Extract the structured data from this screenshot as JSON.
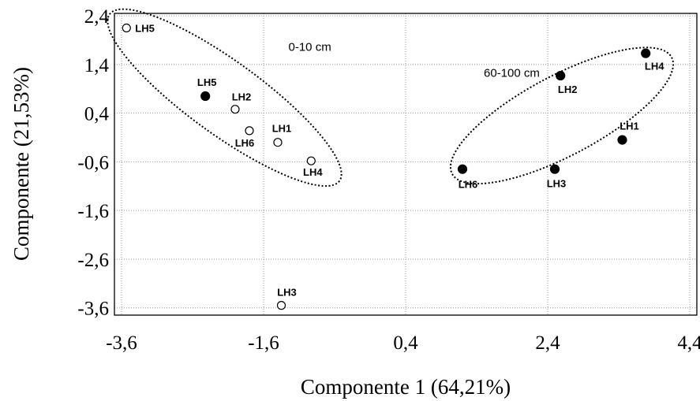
{
  "chart_data": {
    "type": "scatter",
    "xlabel": "Componente 1 (64,21%)",
    "ylabel": "Componente  (21,53%)",
    "xlim": [
      -3.7,
      4.5
    ],
    "ylim": [
      -3.75,
      2.45
    ],
    "xticks": [
      -3.6,
      -1.6,
      0.4,
      2.4,
      4.4
    ],
    "xtick_labels": [
      "-3,6",
      "-1,6",
      "0,4",
      "2,4",
      "4,4"
    ],
    "yticks": [
      2.4,
      1.4,
      0.4,
      -0.6,
      -1.6,
      -2.6,
      -3.6
    ],
    "ytick_labels": [
      "2,4",
      "1,4",
      "0,4",
      "-0,6",
      "-1,6",
      "-2,6",
      "-3,6"
    ],
    "grid": true,
    "series": [
      {
        "marker": "open-circle",
        "points": [
          {
            "label": "LH5",
            "x": -3.53,
            "y": 2.15
          },
          {
            "label": "LH2",
            "x": -2.0,
            "y": 0.48
          },
          {
            "label": "LH6",
            "x": -1.8,
            "y": 0.04
          },
          {
            "label": "LH1",
            "x": -1.4,
            "y": -0.2
          },
          {
            "label": "LH4",
            "x": -0.93,
            "y": -0.58
          },
          {
            "label": "LH3",
            "x": -1.35,
            "y": -3.55
          }
        ]
      },
      {
        "marker": "filled-circle",
        "points": [
          {
            "label": "LH5",
            "x": -2.42,
            "y": 0.75
          },
          {
            "label": "LH6",
            "x": 1.2,
            "y": -0.75
          },
          {
            "label": "LH3",
            "x": 2.5,
            "y": -0.75
          },
          {
            "label": "LH2",
            "x": 2.58,
            "y": 1.17
          },
          {
            "label": "LH1",
            "x": 3.45,
            "y": -0.15
          },
          {
            "label": "LH4",
            "x": 3.78,
            "y": 1.63
          }
        ]
      }
    ],
    "annotations": [
      {
        "text": "0-10 cm",
        "x": -1.25,
        "y": 1.68
      },
      {
        "text": "60-100 cm",
        "x": 1.5,
        "y": 1.15
      }
    ],
    "group_ellipses": [
      {
        "cx": -2.15,
        "cy": 0.72,
        "rx": 2.0,
        "ry": 0.75,
        "angle_deg": 36
      },
      {
        "cx": 2.6,
        "cy": 0.35,
        "rx": 1.75,
        "ry": 0.82,
        "angle_deg": -28
      }
    ]
  }
}
